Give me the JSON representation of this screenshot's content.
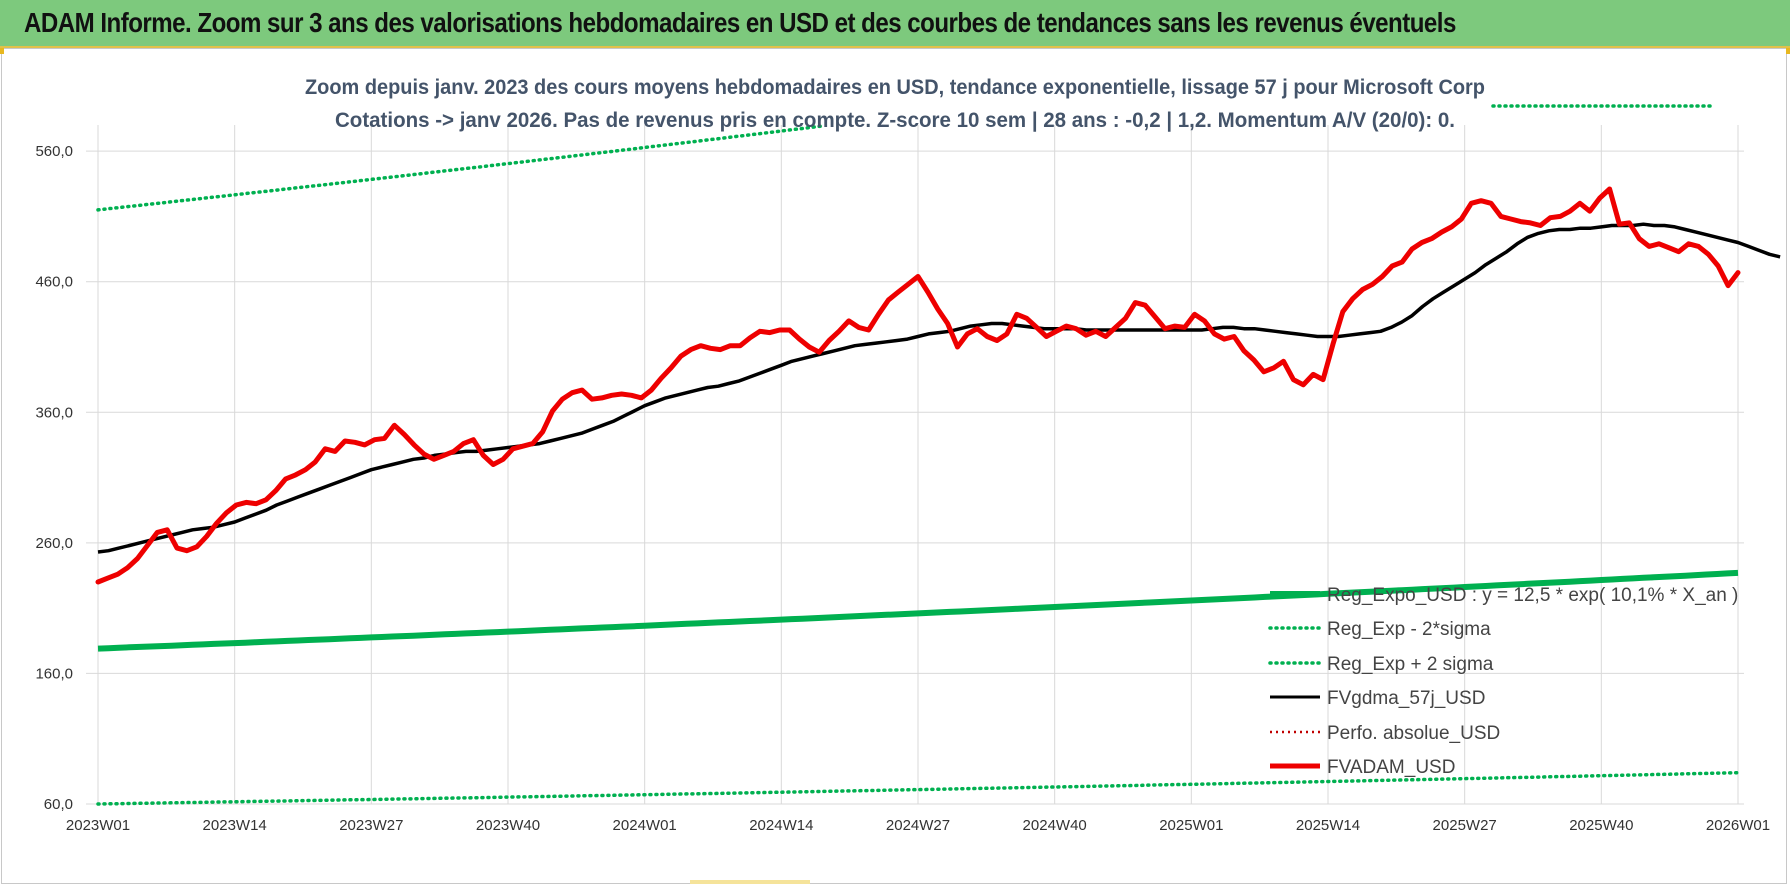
{
  "header": {
    "title": "ADAM Informe. Zoom sur 3 ans des valorisations hebdomadaires en USD et des courbes de tendances sans les revenus éventuels"
  },
  "chart_data": {
    "type": "line",
    "title_lines": [
      "Zoom depuis janv. 2023 des cours moyens hebdomadaires en USD, tendance exponentielle, lissage 57 j pour Microsoft Corp",
      "Cotations -> janv 2026. Pas de revenus pris en compte. Z-score 10 sem | 28 ans : -0,2 | 1,2. Momentum A/V (20/0): 0."
    ],
    "ylim": [
      60,
      580
    ],
    "y_ticks": [
      "560,0",
      "460,0",
      "360,0",
      "260,0",
      "160,0",
      "60,0"
    ],
    "x_tick_labels": [
      "2023W01",
      "2023W14",
      "2023W27",
      "2023W40",
      "2024W01",
      "2024W14",
      "2024W27",
      "2024W40",
      "2025W01",
      "2025W14",
      "2025W27",
      "2025W40",
      "2026W01"
    ],
    "grid": true,
    "legend_position": "bottom-right",
    "colors": {
      "trend": "#00b050",
      "fvgdma": "#000000",
      "fvadam": "#ee0000",
      "perfo": "#c00000"
    },
    "series": [
      {
        "name": "Reg_Expo_USD : y = 12,5 * exp( 10,1% * X_an )",
        "style": "thick-green",
        "start": 179,
        "end": 237
      },
      {
        "name": "Reg_Exp - 2*sigma",
        "style": "dotted-green",
        "start": 60,
        "end": 84
      },
      {
        "name": "Reg_Exp + 2 sigma",
        "style": "dotted-green",
        "start": 515,
        "end": 672
      },
      {
        "name": "FVgdma_57j_USD",
        "style": "black",
        "values": [
          253,
          254,
          256,
          258,
          260,
          262,
          264,
          266,
          268,
          270,
          271,
          272,
          274,
          276,
          279,
          282,
          285,
          289,
          292,
          295,
          298,
          301,
          304,
          307,
          310,
          313,
          316,
          318,
          320,
          322,
          324,
          325,
          327,
          328,
          329,
          330,
          330,
          331,
          332,
          333,
          334,
          335,
          336,
          338,
          340,
          342,
          344,
          347,
          350,
          353,
          357,
          361,
          365,
          368,
          371,
          373,
          375,
          377,
          379,
          380,
          382,
          384,
          387,
          390,
          393,
          396,
          399,
          401,
          403,
          405,
          407,
          409,
          411,
          412,
          413,
          414,
          415,
          416,
          418,
          420,
          421,
          422,
          424,
          426,
          427,
          428,
          428,
          427,
          426,
          425,
          424,
          424,
          424,
          424,
          423,
          423,
          423,
          423,
          423,
          423,
          423,
          423,
          423,
          423,
          423,
          423,
          424,
          425,
          425,
          424,
          424,
          423,
          422,
          421,
          420,
          419,
          418,
          418,
          418,
          419,
          420,
          421,
          422,
          425,
          429,
          434,
          441,
          447,
          452,
          457,
          462,
          467,
          473,
          478,
          483,
          489,
          494,
          497,
          499,
          500,
          500,
          501,
          501,
          502,
          503,
          503,
          503,
          504,
          503,
          503,
          502,
          500,
          498,
          496,
          494,
          492,
          490,
          487,
          484,
          481,
          479
        ]
      },
      {
        "name": "Perfo. absolue_USD",
        "style": "dotted-red",
        "values": []
      },
      {
        "name": "FVADAM_USD",
        "style": "red",
        "values": [
          230,
          233,
          236,
          241,
          248,
          258,
          268,
          270,
          256,
          254,
          257,
          265,
          275,
          283,
          289,
          291,
          290,
          293,
          300,
          309,
          312,
          316,
          322,
          332,
          330,
          338,
          337,
          335,
          339,
          340,
          350,
          343,
          335,
          328,
          324,
          327,
          330,
          336,
          339,
          327,
          320,
          324,
          332,
          334,
          336,
          345,
          361,
          370,
          375,
          377,
          370,
          371,
          373,
          374,
          373,
          371,
          377,
          386,
          394,
          403,
          408,
          411,
          409,
          408,
          411,
          411,
          417,
          422,
          421,
          423,
          423,
          416,
          410,
          406,
          415,
          422,
          430,
          425,
          423,
          435,
          446,
          452,
          458,
          464,
          452,
          439,
          428,
          410,
          420,
          424,
          418,
          415,
          420,
          435,
          432,
          425,
          418,
          422,
          426,
          424,
          419,
          422,
          418,
          425,
          432,
          444,
          442,
          433,
          424,
          426,
          425,
          435,
          430,
          420,
          416,
          418,
          407,
          400,
          391,
          394,
          399,
          385,
          381,
          389,
          385,
          412,
          437,
          447,
          454,
          458,
          464,
          472,
          475,
          485,
          490,
          493,
          498,
          502,
          508,
          520,
          522,
          520,
          510,
          508,
          506,
          505,
          503,
          509,
          510,
          514,
          520,
          514,
          524,
          531,
          504,
          505,
          493,
          487,
          489,
          486,
          483,
          489,
          487,
          481,
          472,
          457,
          467
        ]
      }
    ]
  }
}
